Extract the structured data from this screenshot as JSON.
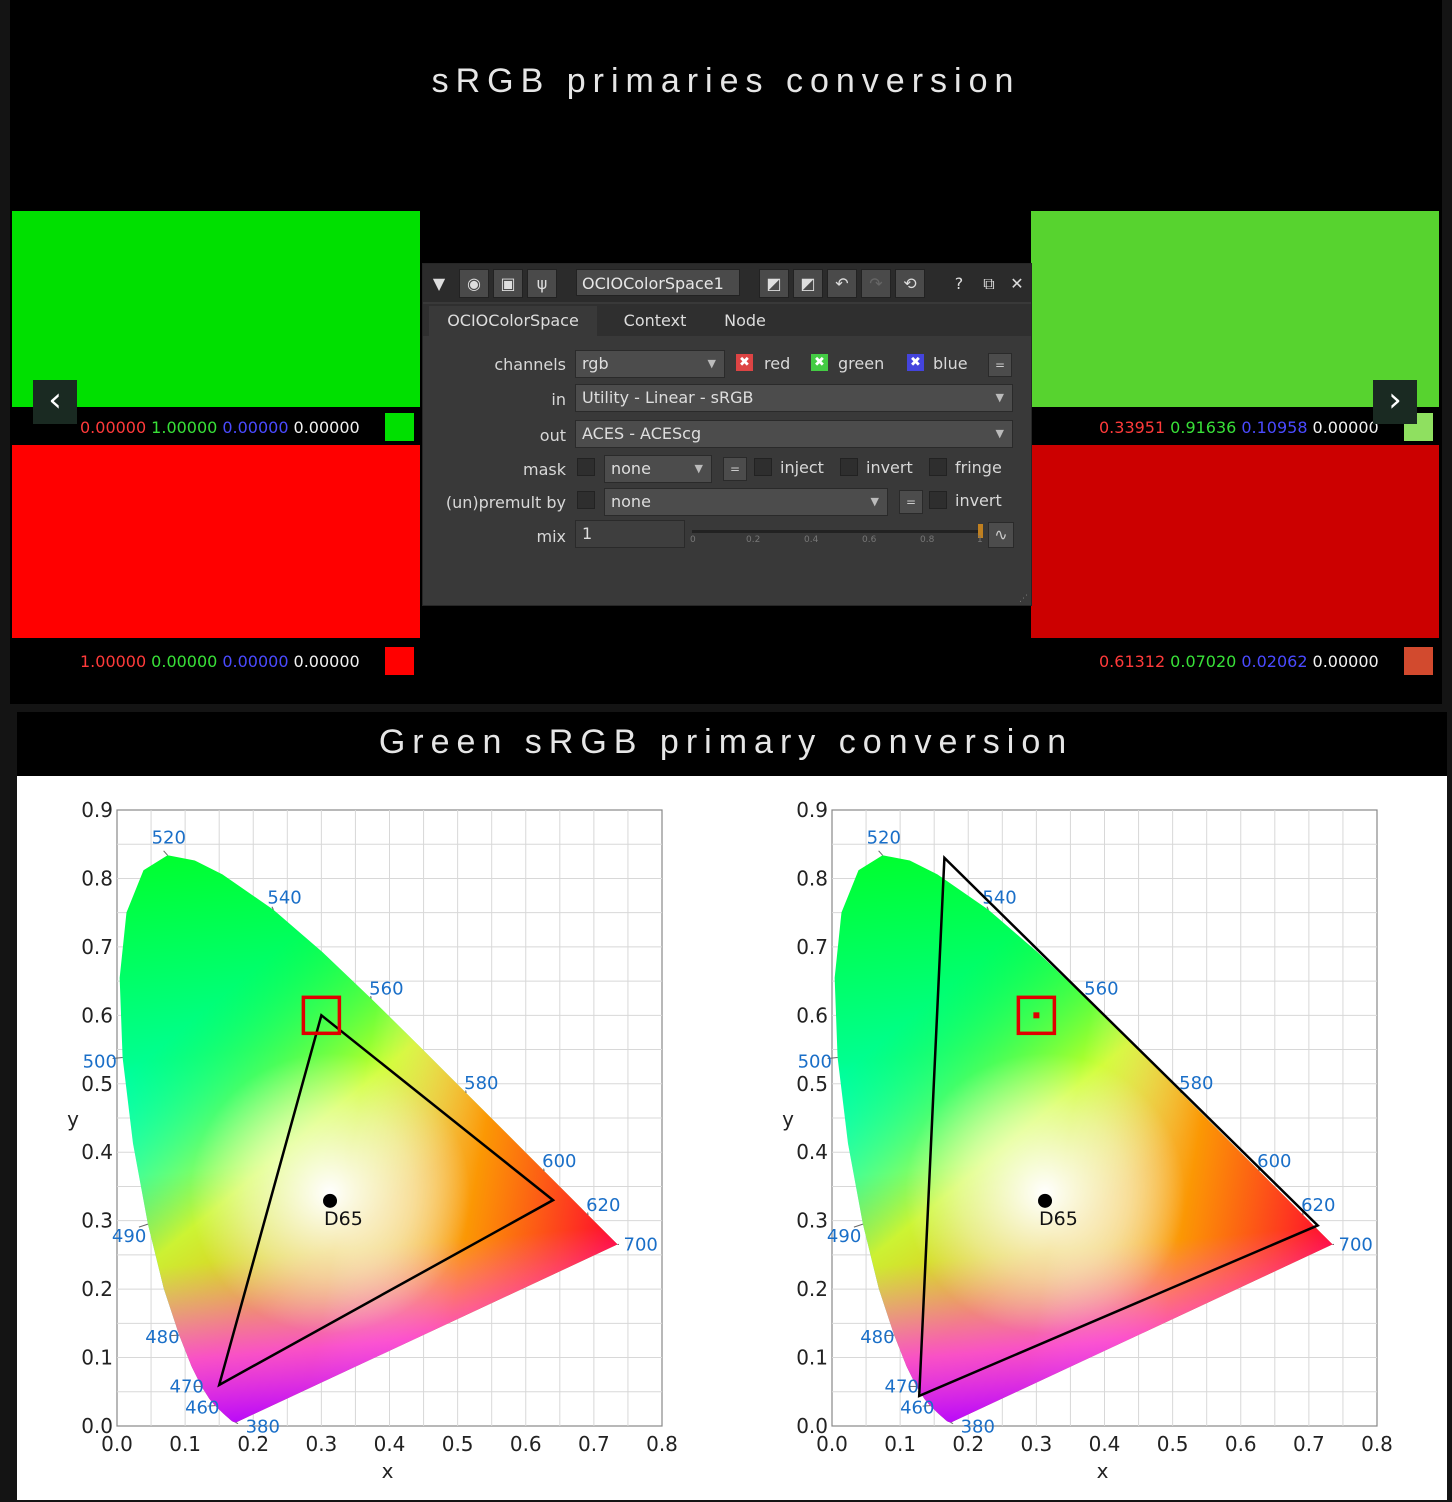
{
  "titles": {
    "top": "sRGB primaries conversion",
    "bottom": "Green sRGB primary conversion"
  },
  "left_samples": {
    "green": {
      "r": "0.00000",
      "g": "1.00000",
      "b": "0.00000",
      "a": "0.00000",
      "color": "#00e000"
    },
    "red": {
      "r": "1.00000",
      "g": "0.00000",
      "b": "0.00000",
      "a": "0.00000",
      "color": "#ff0000"
    }
  },
  "right_samples": {
    "green": {
      "r": "0.33951",
      "g": "0.91636",
      "b": "0.10958",
      "a": "0.00000",
      "color": "#57d32f"
    },
    "red": {
      "r": "0.61312",
      "g": "0.07020",
      "b": "0.02062",
      "a": "0.00000",
      "color": "#cc0000"
    }
  },
  "nav": {
    "prev": "‹",
    "next": "›"
  },
  "panel": {
    "node_name": "OCIOColorSpace1",
    "help": "?",
    "tabs": [
      "OCIOColorSpace",
      "Context",
      "Node"
    ],
    "channels": {
      "label": "channels",
      "value": "rgb",
      "red": "red",
      "green": "green",
      "blue": "blue"
    },
    "in": {
      "label": "in",
      "value": "Utility - Linear - sRGB"
    },
    "out": {
      "label": "out",
      "value": "ACES - ACEScg"
    },
    "mask": {
      "label": "mask",
      "value": "none",
      "inject": "inject",
      "invert": "invert",
      "fringe": "fringe"
    },
    "premult": {
      "label": "(un)premult by",
      "value": "none",
      "invert": "invert"
    },
    "mix": {
      "label": "mix",
      "value": "1",
      "ticks": [
        "0",
        "0.2",
        "0.4",
        "0.6",
        "0.8",
        "1"
      ]
    },
    "eq": "="
  },
  "chart_data": [
    {
      "type": "scatter",
      "title": "",
      "xlabel": "x",
      "ylabel": "y",
      "xlim": [
        0,
        0.8
      ],
      "ylim": [
        0,
        0.9
      ],
      "xticks": [
        "0.0",
        "0.1",
        "0.2",
        "0.3",
        "0.4",
        "0.5",
        "0.6",
        "0.7",
        "0.8"
      ],
      "yticks": [
        "0.0",
        "0.1",
        "0.2",
        "0.3",
        "0.4",
        "0.5",
        "0.6",
        "0.7",
        "0.8",
        "0.9"
      ],
      "wavelength_labels": [
        "380",
        "460",
        "470",
        "480",
        "490",
        "500",
        "520",
        "540",
        "560",
        "580",
        "600",
        "620",
        "700"
      ],
      "whitepoint": {
        "label": "D65",
        "x": 0.3127,
        "y": 0.329
      },
      "gamut_triangle": [
        [
          0.64,
          0.33
        ],
        [
          0.3,
          0.6
        ],
        [
          0.15,
          0.06
        ]
      ],
      "highlight": {
        "x": 0.3,
        "y": 0.6
      },
      "highlight_dot": false
    },
    {
      "type": "scatter",
      "title": "",
      "xlabel": "x",
      "ylabel": "y",
      "xlim": [
        0,
        0.8
      ],
      "ylim": [
        0,
        0.9
      ],
      "xticks": [
        "0.0",
        "0.1",
        "0.2",
        "0.3",
        "0.4",
        "0.5",
        "0.6",
        "0.7",
        "0.8"
      ],
      "yticks": [
        "0.0",
        "0.1",
        "0.2",
        "0.3",
        "0.4",
        "0.5",
        "0.6",
        "0.7",
        "0.8",
        "0.9"
      ],
      "wavelength_labels": [
        "380",
        "460",
        "470",
        "480",
        "490",
        "500",
        "520",
        "540",
        "560",
        "580",
        "600",
        "620",
        "700"
      ],
      "whitepoint": {
        "label": "D65",
        "x": 0.3127,
        "y": 0.329
      },
      "gamut_triangle": [
        [
          0.713,
          0.293
        ],
        [
          0.165,
          0.83
        ],
        [
          0.128,
          0.044
        ]
      ],
      "highlight": {
        "x": 0.3,
        "y": 0.6
      },
      "highlight_dot": true
    }
  ]
}
